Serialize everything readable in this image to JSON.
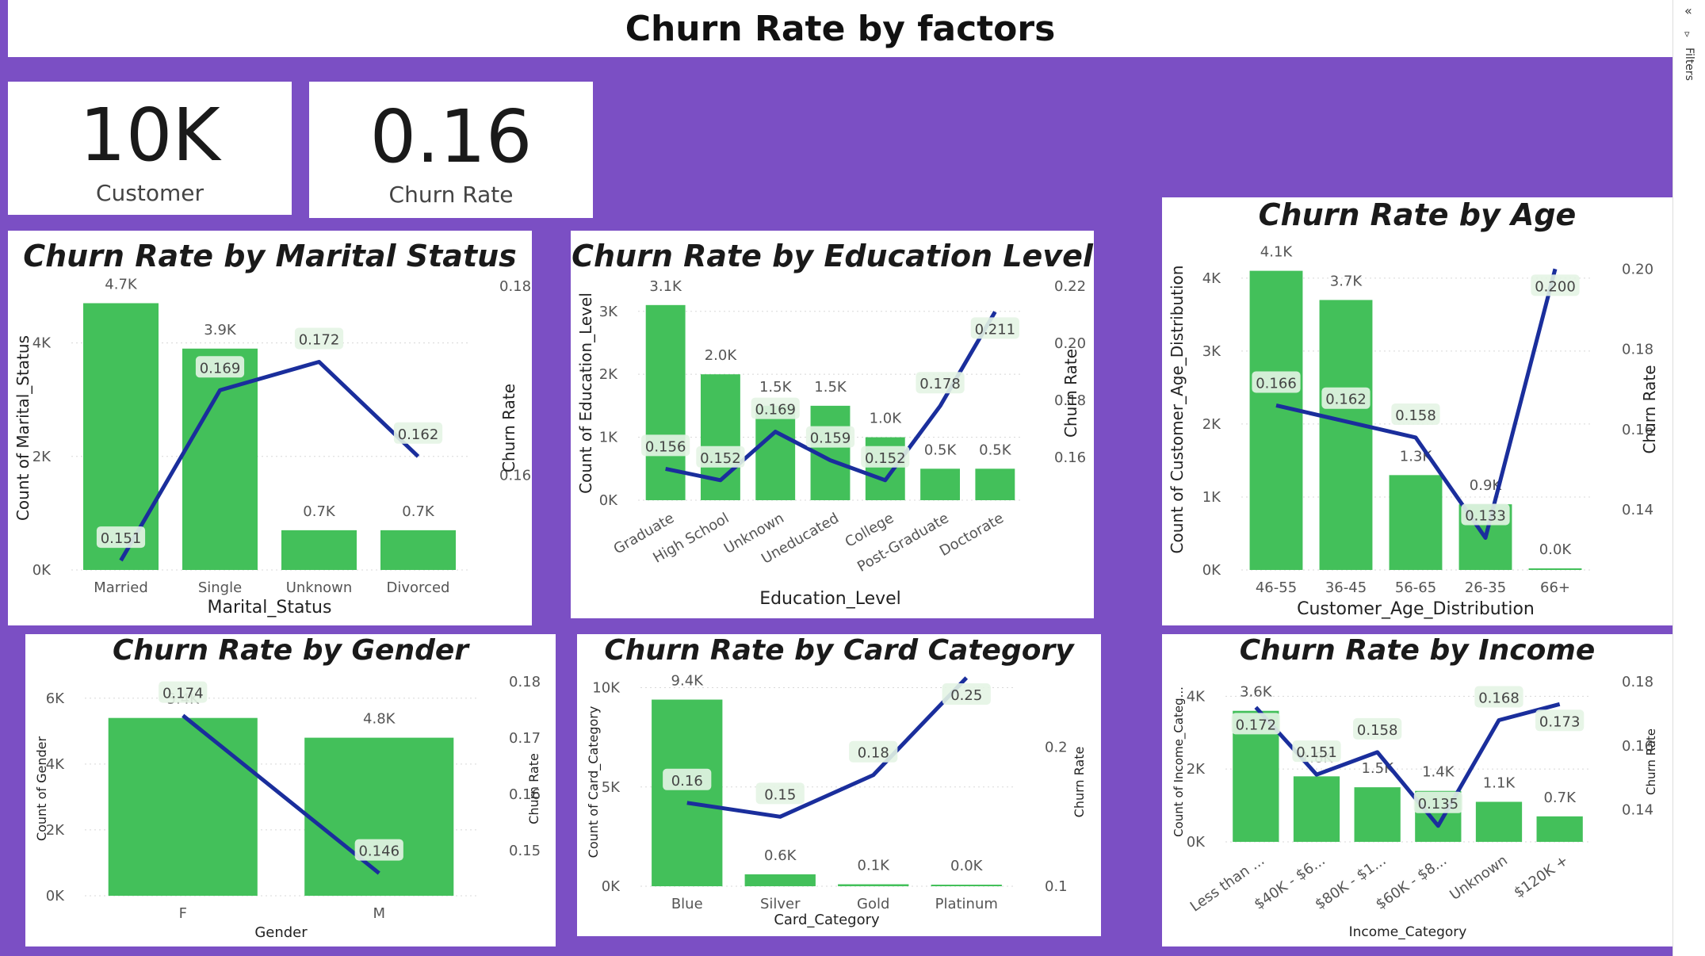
{
  "header": {
    "title": "Churn Rate by factors"
  },
  "filters_pane": {
    "label": "Filters"
  },
  "kpis": [
    {
      "value": "10K",
      "label": "Customer"
    },
    {
      "value": "0.16",
      "label": "Churn Rate"
    }
  ],
  "colors": {
    "bar": "#43c05a",
    "line": "#1a2e9c",
    "background": "#7b4fc4"
  },
  "chart_data": [
    {
      "id": "marital",
      "type": "bar+line",
      "title": "Churn Rate by Marital Status",
      "xlabel": "Marital_Status",
      "ylabel": "Count of Marital_Status",
      "y2label": "Churn Rate",
      "categories": [
        "Married",
        "Single",
        "Unknown",
        "Divorced"
      ],
      "counts": [
        4.7,
        3.9,
        0.7,
        0.7
      ],
      "count_labels": [
        "4.7K",
        "3.9K",
        "0.7K",
        "0.7K"
      ],
      "rates": [
        0.151,
        0.169,
        0.172,
        0.162
      ],
      "rate_labels": [
        "0.151",
        "0.169",
        "0.172",
        "0.162"
      ],
      "yticks": [
        "0K",
        "2K",
        "4K"
      ],
      "y2ticks": [
        "0.16",
        "0.18"
      ]
    },
    {
      "id": "education",
      "type": "bar+line",
      "title": "Churn Rate by Education Level",
      "xlabel": "Education_Level",
      "ylabel": "Count of Education_Level",
      "y2label": "Churn Rate",
      "categories": [
        "Graduate",
        "High School",
        "Unknown",
        "Uneducated",
        "College",
        "Post-Graduate",
        "Doctorate"
      ],
      "counts": [
        3.1,
        2.0,
        1.5,
        1.5,
        1.0,
        0.5,
        0.5
      ],
      "count_labels": [
        "3.1K",
        "2.0K",
        "1.5K",
        "1.5K",
        "1.0K",
        "0.5K",
        "0.5K"
      ],
      "rates": [
        0.156,
        0.152,
        0.169,
        0.159,
        0.152,
        0.178,
        0.211
      ],
      "rate_labels": [
        "0.156",
        "0.152",
        "0.169",
        "0.159",
        "0.152",
        "0.178",
        "0.211"
      ],
      "yticks": [
        "0K",
        "1K",
        "2K",
        "3K"
      ],
      "y2ticks": [
        "0.16",
        "0.18",
        "0.20",
        "0.22"
      ]
    },
    {
      "id": "age",
      "type": "bar+line",
      "title": "Churn Rate by Age",
      "xlabel": "Customer_Age_Distribution",
      "ylabel": "Count of Customer_Age_Distribution",
      "y2label": "Churn Rate",
      "categories": [
        "46-55",
        "36-45",
        "56-65",
        "26-35",
        "66+"
      ],
      "counts": [
        4.1,
        3.7,
        1.3,
        0.9,
        0.0
      ],
      "count_labels": [
        "4.1K",
        "3.7K",
        "1.3K",
        "0.9K",
        "0.0K"
      ],
      "rates": [
        0.166,
        0.162,
        0.158,
        0.133,
        0.2
      ],
      "rate_labels": [
        "0.166",
        "0.162",
        "0.158",
        "0.133",
        "0.200"
      ],
      "yticks": [
        "0K",
        "1K",
        "2K",
        "3K",
        "4K"
      ],
      "y2ticks": [
        "0.14",
        "0.16",
        "0.18",
        "0.20"
      ]
    },
    {
      "id": "gender",
      "type": "bar+line",
      "title": "Churn Rate by Gender",
      "xlabel": "Gender",
      "ylabel": "Count of Gender",
      "y2label": "Churn Rate",
      "categories": [
        "F",
        "M"
      ],
      "counts": [
        5.4,
        4.8
      ],
      "count_labels": [
        "5.4K",
        "4.8K"
      ],
      "rates": [
        0.174,
        0.146
      ],
      "rate_labels": [
        "0.174",
        "0.146"
      ],
      "yticks": [
        "0K",
        "2K",
        "4K",
        "6K"
      ],
      "y2ticks": [
        "0.15",
        "0.16",
        "0.17",
        "0.18"
      ]
    },
    {
      "id": "card",
      "type": "bar+line",
      "title": "Churn Rate by Card Category",
      "xlabel": "Card_Category",
      "ylabel": "Count of Card_Category",
      "y2label": "Churn Rate",
      "categories": [
        "Blue",
        "Silver",
        "Gold",
        "Platinum"
      ],
      "counts": [
        9.4,
        0.6,
        0.1,
        0.0
      ],
      "count_labels": [
        "9.4K",
        "0.6K",
        "0.1K",
        "0.0K"
      ],
      "rates": [
        0.16,
        0.15,
        0.18,
        0.25
      ],
      "rate_labels": [
        "0.16",
        "0.15",
        "0.18",
        "0.25"
      ],
      "yticks": [
        "0K",
        "5K",
        "10K"
      ],
      "y2ticks": [
        "0.1",
        "0.2"
      ]
    },
    {
      "id": "income",
      "type": "bar+line",
      "title": "Churn Rate by Income",
      "xlabel": "Income_Category",
      "ylabel": "Count of Income_Categ...",
      "y2label": "Churn Rate",
      "categories": [
        "Less than ...",
        "$40K - $6...",
        "$80K - $1...",
        "$60K - $8...",
        "Unknown",
        "$120K +"
      ],
      "counts": [
        3.6,
        1.8,
        1.5,
        1.4,
        1.1,
        0.7
      ],
      "count_labels": [
        "3.6K",
        "1.8K",
        "1.5K",
        "1.4K",
        "1.1K",
        "0.7K"
      ],
      "rates": [
        0.172,
        0.151,
        0.158,
        0.135,
        0.168,
        0.173
      ],
      "rate_labels": [
        "0.172",
        "0.151",
        "0.158",
        "0.135",
        "0.168",
        "0.173"
      ],
      "yticks": [
        "0K",
        "2K",
        "4K"
      ],
      "y2ticks": [
        "0.14",
        "0.16",
        "0.18"
      ]
    }
  ]
}
